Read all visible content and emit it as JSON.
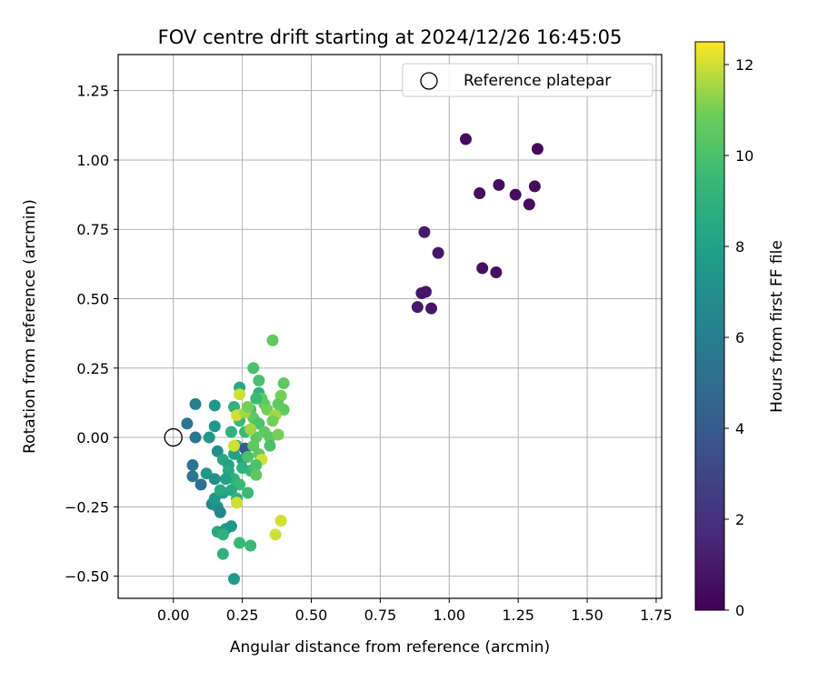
{
  "chart_data": {
    "type": "scatter",
    "title": "FOV centre drift starting at 2024/12/26 16:45:05",
    "xlabel": "Angular distance from reference (arcmin)",
    "ylabel": "Rotation from reference (arcmin)",
    "xlim": [
      -0.2,
      1.77
    ],
    "ylim": [
      -0.58,
      1.38
    ],
    "x_ticks": [
      0.0,
      0.25,
      0.5,
      0.75,
      1.0,
      1.25,
      1.5,
      1.75
    ],
    "x_tick_labels": [
      "0.00",
      "0.25",
      "0.50",
      "0.75",
      "1.00",
      "1.25",
      "1.50",
      "1.75"
    ],
    "y_ticks": [
      -0.5,
      -0.25,
      0.0,
      0.25,
      0.5,
      0.75,
      1.0,
      1.25
    ],
    "y_tick_labels": [
      "−0.50",
      "−0.25",
      "0.00",
      "0.25",
      "0.50",
      "0.75",
      "1.00",
      "1.25"
    ],
    "grid": true,
    "legend": {
      "placement": "top-right",
      "entries": [
        "Reference platepar"
      ]
    },
    "reference_point": {
      "x": 0.0,
      "y": 0.0,
      "label": "Reference platepar"
    },
    "colorbar": {
      "label": "Hours from first FF file",
      "colormap": "viridis",
      "range": [
        0,
        12.5
      ],
      "ticks": [
        0,
        2,
        4,
        6,
        8,
        10,
        12
      ],
      "tick_labels": [
        "0",
        "2",
        "4",
        "6",
        "8",
        "10",
        "12"
      ]
    },
    "points": [
      {
        "x": 1.06,
        "y": 1.075,
        "t": 0.3
      },
      {
        "x": 1.32,
        "y": 1.04,
        "t": 0.3
      },
      {
        "x": 1.18,
        "y": 0.91,
        "t": 0.4
      },
      {
        "x": 1.31,
        "y": 0.905,
        "t": 0.4
      },
      {
        "x": 1.11,
        "y": 0.88,
        "t": 0.5
      },
      {
        "x": 1.24,
        "y": 0.875,
        "t": 0.5
      },
      {
        "x": 1.29,
        "y": 0.84,
        "t": 0.5
      },
      {
        "x": 0.91,
        "y": 0.74,
        "t": 1.0
      },
      {
        "x": 0.96,
        "y": 0.665,
        "t": 0.9
      },
      {
        "x": 1.12,
        "y": 0.61,
        "t": 0.6
      },
      {
        "x": 1.17,
        "y": 0.595,
        "t": 0.6
      },
      {
        "x": 0.9,
        "y": 0.52,
        "t": 0.8
      },
      {
        "x": 0.915,
        "y": 0.525,
        "t": 0.9
      },
      {
        "x": 0.885,
        "y": 0.47,
        "t": 1.0
      },
      {
        "x": 0.935,
        "y": 0.465,
        "t": 0.9
      },
      {
        "x": 0.08,
        "y": 0.12,
        "t": 6.0
      },
      {
        "x": 0.05,
        "y": 0.05,
        "t": 5.5
      },
      {
        "x": 0.08,
        "y": 0.0,
        "t": 5.5
      },
      {
        "x": 0.07,
        "y": -0.1,
        "t": 5.5
      },
      {
        "x": 0.07,
        "y": -0.14,
        "t": 5.5
      },
      {
        "x": 0.1,
        "y": -0.17,
        "t": 5.0
      },
      {
        "x": 0.15,
        "y": 0.115,
        "t": 7.5
      },
      {
        "x": 0.15,
        "y": 0.04,
        "t": 7.5
      },
      {
        "x": 0.13,
        "y": 0.0,
        "t": 7.5
      },
      {
        "x": 0.16,
        "y": -0.05,
        "t": 7.0
      },
      {
        "x": 0.18,
        "y": -0.08,
        "t": 8.5
      },
      {
        "x": 0.2,
        "y": -0.1,
        "t": 8.0
      },
      {
        "x": 0.12,
        "y": -0.13,
        "t": 7.5
      },
      {
        "x": 0.15,
        "y": -0.15,
        "t": 7.0
      },
      {
        "x": 0.14,
        "y": -0.24,
        "t": 6.5
      },
      {
        "x": 0.16,
        "y": -0.25,
        "t": 7.0
      },
      {
        "x": 0.17,
        "y": -0.27,
        "t": 6.5
      },
      {
        "x": 0.18,
        "y": -0.2,
        "t": 8.0
      },
      {
        "x": 0.15,
        "y": -0.22,
        "t": 7.5
      },
      {
        "x": 0.16,
        "y": -0.34,
        "t": 8.5
      },
      {
        "x": 0.19,
        "y": -0.33,
        "t": 7.5
      },
      {
        "x": 0.21,
        "y": -0.32,
        "t": 7.5
      },
      {
        "x": 0.18,
        "y": -0.35,
        "t": 9.0
      },
      {
        "x": 0.18,
        "y": -0.42,
        "t": 9.0
      },
      {
        "x": 0.22,
        "y": -0.51,
        "t": 7.5
      },
      {
        "x": 0.24,
        "y": -0.38,
        "t": 9.5
      },
      {
        "x": 0.28,
        "y": -0.39,
        "t": 9.5
      },
      {
        "x": 0.24,
        "y": 0.18,
        "t": 8.5
      },
      {
        "x": 0.22,
        "y": 0.11,
        "t": 9.0
      },
      {
        "x": 0.24,
        "y": 0.06,
        "t": 9.5
      },
      {
        "x": 0.21,
        "y": 0.02,
        "t": 9.0
      },
      {
        "x": 0.23,
        "y": -0.03,
        "t": 9.0
      },
      {
        "x": 0.22,
        "y": -0.06,
        "t": 8.0
      },
      {
        "x": 0.26,
        "y": -0.04,
        "t": 4.0
      },
      {
        "x": 0.25,
        "y": -0.08,
        "t": 8.0
      },
      {
        "x": 0.2,
        "y": -0.12,
        "t": 8.5
      },
      {
        "x": 0.22,
        "y": -0.15,
        "t": 9.0
      },
      {
        "x": 0.24,
        "y": -0.17,
        "t": 9.5
      },
      {
        "x": 0.21,
        "y": -0.19,
        "t": 8.5
      },
      {
        "x": 0.23,
        "y": -0.22,
        "t": 9.0
      },
      {
        "x": 0.27,
        "y": -0.2,
        "t": 9.5
      },
      {
        "x": 0.28,
        "y": -0.12,
        "t": 9.5
      },
      {
        "x": 0.27,
        "y": -0.07,
        "t": 10.0
      },
      {
        "x": 0.29,
        "y": -0.03,
        "t": 10.5
      },
      {
        "x": 0.3,
        "y": 0.0,
        "t": 10.5
      },
      {
        "x": 0.29,
        "y": 0.25,
        "t": 10.0
      },
      {
        "x": 0.31,
        "y": 0.205,
        "t": 10.0
      },
      {
        "x": 0.31,
        "y": 0.16,
        "t": 9.0
      },
      {
        "x": 0.32,
        "y": 0.14,
        "t": 10.5
      },
      {
        "x": 0.33,
        "y": 0.12,
        "t": 10.5
      },
      {
        "x": 0.34,
        "y": 0.1,
        "t": 11.0
      },
      {
        "x": 0.3,
        "y": 0.14,
        "t": 9.5
      },
      {
        "x": 0.28,
        "y": 0.1,
        "t": 10.0
      },
      {
        "x": 0.29,
        "y": 0.07,
        "t": 10.5
      },
      {
        "x": 0.31,
        "y": 0.05,
        "t": 10.0
      },
      {
        "x": 0.33,
        "y": 0.02,
        "t": 10.5
      },
      {
        "x": 0.35,
        "y": 0.0,
        "t": 10.5
      },
      {
        "x": 0.36,
        "y": 0.35,
        "t": 10.5
      },
      {
        "x": 0.4,
        "y": 0.195,
        "t": 10.5
      },
      {
        "x": 0.39,
        "y": 0.15,
        "t": 11.0
      },
      {
        "x": 0.38,
        "y": 0.12,
        "t": 10.5
      },
      {
        "x": 0.4,
        "y": 0.1,
        "t": 10.5
      },
      {
        "x": 0.37,
        "y": 0.08,
        "t": 11.5
      },
      {
        "x": 0.36,
        "y": 0.06,
        "t": 11.0
      },
      {
        "x": 0.38,
        "y": 0.01,
        "t": 11.0
      },
      {
        "x": 0.35,
        "y": -0.03,
        "t": 10.0
      },
      {
        "x": 0.31,
        "y": -0.06,
        "t": 10.5
      },
      {
        "x": 0.32,
        "y": -0.08,
        "t": 12.0
      },
      {
        "x": 0.3,
        "y": -0.1,
        "t": 10.0
      },
      {
        "x": 0.3,
        "y": -0.135,
        "t": 10.5
      },
      {
        "x": 0.26,
        "y": 0.02,
        "t": 9.5
      },
      {
        "x": 0.23,
        "y": 0.08,
        "t": 12.0
      },
      {
        "x": 0.26,
        "y": 0.09,
        "t": 11.5
      },
      {
        "x": 0.28,
        "y": 0.03,
        "t": 11.5
      },
      {
        "x": 0.24,
        "y": 0.155,
        "t": 12.0
      },
      {
        "x": 0.23,
        "y": -0.235,
        "t": 12.0
      },
      {
        "x": 0.37,
        "y": -0.35,
        "t": 12.0
      },
      {
        "x": 0.39,
        "y": -0.3,
        "t": 12.0
      },
      {
        "x": 0.27,
        "y": 0.11,
        "t": 11.0
      },
      {
        "x": 0.22,
        "y": -0.03,
        "t": 12.0
      },
      {
        "x": 0.25,
        "y": -0.11,
        "t": 9.0
      },
      {
        "x": 0.19,
        "y": -0.15,
        "t": 8.0
      },
      {
        "x": 0.17,
        "y": -0.19,
        "t": 8.5
      }
    ]
  }
}
